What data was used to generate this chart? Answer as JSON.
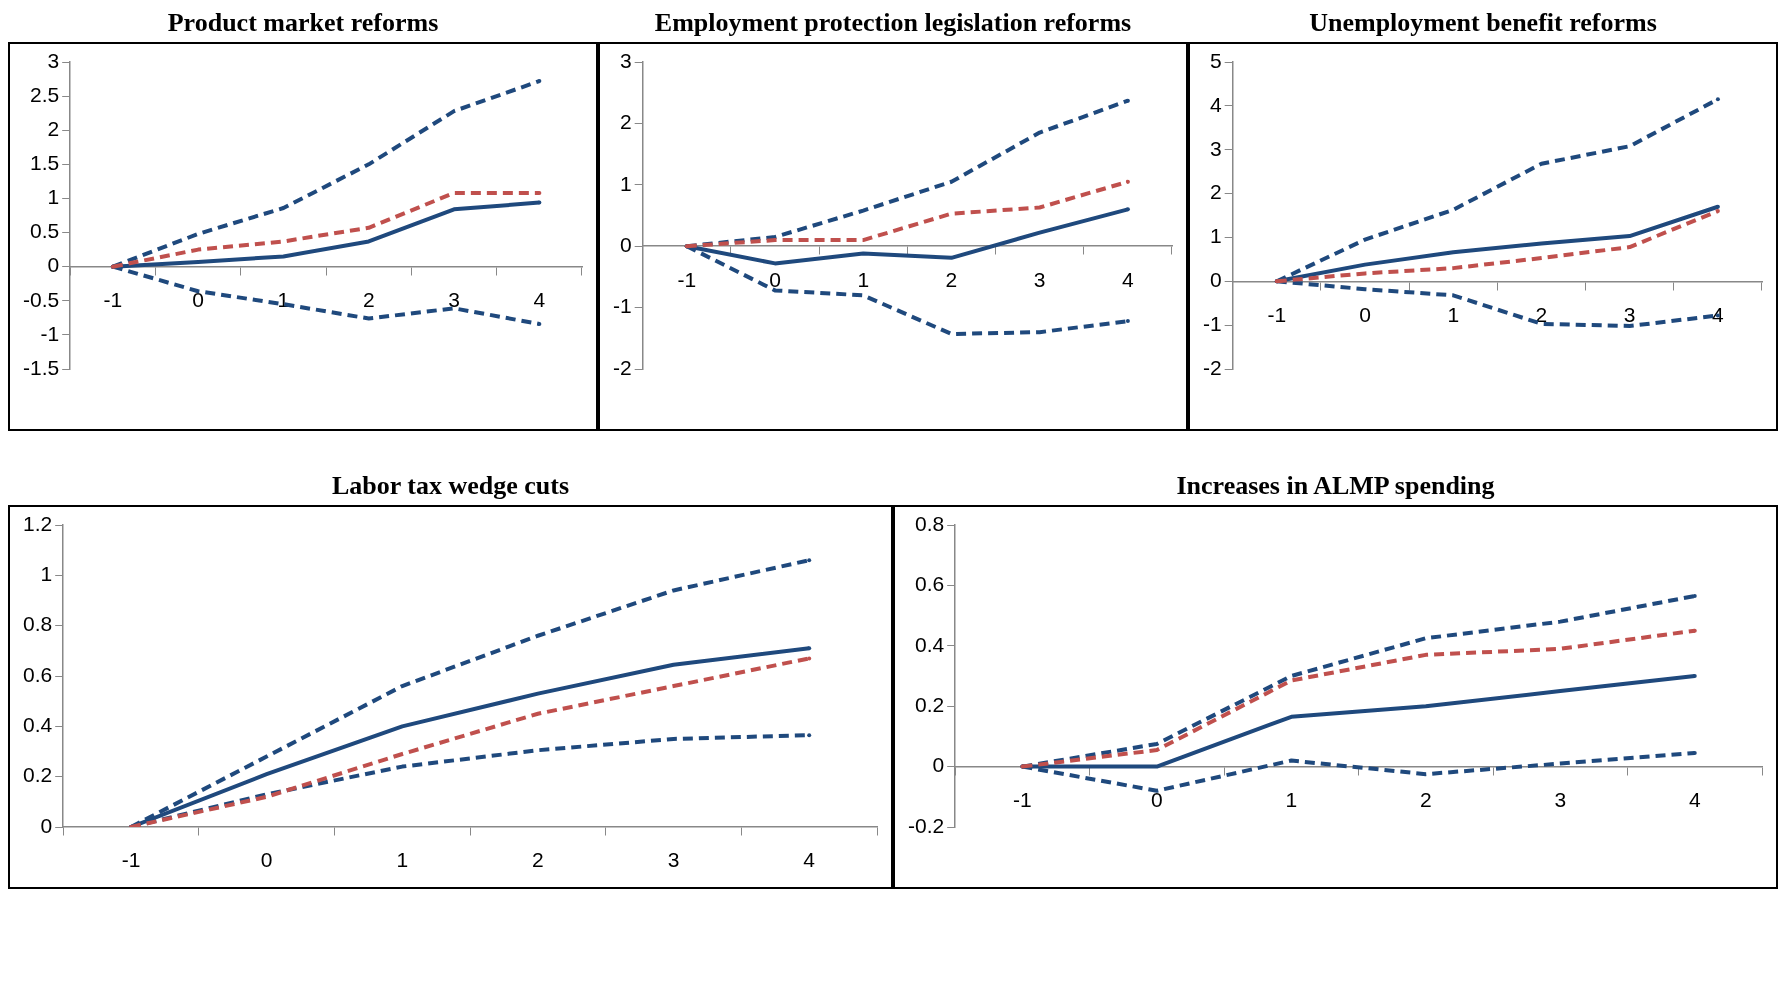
{
  "chart_data": [
    {
      "type": "line",
      "title": "Product market reforms",
      "categories": [
        "-1",
        "0",
        "1",
        "2",
        "3",
        "4"
      ],
      "ylim": [
        -1.5,
        3
      ],
      "yticks": [
        -1.5,
        -1,
        -0.5,
        0,
        0.5,
        1,
        1.5,
        2,
        2.5,
        3
      ],
      "grid": false,
      "legend": false,
      "marker": "none",
      "series": [
        {
          "color": "#1f497d",
          "line_style": "dashed",
          "values": [
            0,
            0.48,
            0.86,
            1.5,
            2.28,
            2.72
          ]
        },
        {
          "color": "#c0504d",
          "line_style": "dashed",
          "values": [
            0,
            0.25,
            0.37,
            0.57,
            1.08,
            1.08
          ]
        },
        {
          "color": "#1f497d",
          "line_style": "solid",
          "values": [
            0,
            0.07,
            0.15,
            0.37,
            0.84,
            0.94
          ]
        },
        {
          "color": "#1f497d",
          "line_style": "dashed",
          "values": [
            0,
            -0.36,
            -0.55,
            -0.76,
            -0.61,
            -0.84
          ]
        }
      ]
    },
    {
      "type": "line",
      "title": "Employment protection legislation reforms",
      "categories": [
        "-1",
        "0",
        "1",
        "2",
        "3",
        "4"
      ],
      "ylim": [
        -2,
        3
      ],
      "yticks": [
        -2,
        -1,
        0,
        1,
        2,
        3
      ],
      "grid": false,
      "legend": false,
      "marker": "none",
      "series": [
        {
          "color": "#1f497d",
          "line_style": "dashed",
          "values": [
            0,
            0.15,
            0.58,
            1.05,
            1.85,
            2.37
          ]
        },
        {
          "color": "#c0504d",
          "line_style": "dashed",
          "values": [
            0,
            0.1,
            0.1,
            0.53,
            0.63,
            1.05
          ]
        },
        {
          "color": "#1f497d",
          "line_style": "solid",
          "values": [
            0,
            -0.28,
            -0.12,
            -0.19,
            0.22,
            0.6
          ]
        },
        {
          "color": "#1f497d",
          "line_style": "dashed",
          "values": [
            0,
            -0.72,
            -0.8,
            -1.43,
            -1.4,
            -1.22
          ]
        }
      ]
    },
    {
      "type": "line",
      "title": "Unemployment benefit reforms",
      "categories": [
        "-1",
        "0",
        "1",
        "2",
        "3",
        "4"
      ],
      "ylim": [
        -2,
        5
      ],
      "yticks": [
        -2,
        -1,
        0,
        1,
        2,
        3,
        4,
        5
      ],
      "grid": false,
      "legend": false,
      "marker": "none",
      "series": [
        {
          "color": "#1f497d",
          "line_style": "dashed",
          "values": [
            0,
            0.95,
            1.63,
            2.68,
            3.08,
            4.15
          ]
        },
        {
          "color": "#c0504d",
          "line_style": "dashed",
          "values": [
            0,
            0.18,
            0.3,
            0.53,
            0.78,
            1.6
          ]
        },
        {
          "color": "#1f497d",
          "line_style": "solid",
          "values": [
            0,
            0.38,
            0.66,
            0.86,
            1.03,
            1.7
          ]
        },
        {
          "color": "#1f497d",
          "line_style": "dashed",
          "values": [
            0,
            -0.18,
            -0.32,
            -0.97,
            -1.02,
            -0.78
          ]
        }
      ]
    },
    {
      "type": "line",
      "title": "Labor tax wedge cuts",
      "categories": [
        "-1",
        "0",
        "1",
        "2",
        "3",
        "4"
      ],
      "ylim": [
        0,
        1.2
      ],
      "yticks": [
        0,
        0.2,
        0.4,
        0.6,
        0.8,
        1,
        1.2
      ],
      "grid": false,
      "legend": false,
      "marker": "none",
      "series": [
        {
          "color": "#1f497d",
          "line_style": "dashed",
          "values": [
            0,
            0.28,
            0.56,
            0.76,
            0.94,
            1.06
          ]
        },
        {
          "color": "#1f497d",
          "line_style": "solid",
          "values": [
            0,
            0.21,
            0.4,
            0.53,
            0.645,
            0.71
          ]
        },
        {
          "color": "#c0504d",
          "line_style": "dashed",
          "values": [
            0,
            0.12,
            0.29,
            0.45,
            0.56,
            0.67
          ]
        },
        {
          "color": "#1f497d",
          "line_style": "dashed",
          "values": [
            0,
            0.13,
            0.24,
            0.305,
            0.35,
            0.365
          ]
        }
      ]
    },
    {
      "type": "line",
      "title": "Increases in ALMP spending",
      "categories": [
        "-1",
        "0",
        "1",
        "2",
        "3",
        "4"
      ],
      "ylim": [
        -0.2,
        0.8
      ],
      "yticks": [
        -0.2,
        0,
        0.2,
        0.4,
        0.6,
        0.8
      ],
      "grid": false,
      "legend": false,
      "marker": "none",
      "series": [
        {
          "color": "#1f497d",
          "line_style": "dashed",
          "values": [
            0,
            0.075,
            0.3,
            0.425,
            0.48,
            0.565
          ]
        },
        {
          "color": "#c0504d",
          "line_style": "dashed",
          "values": [
            0,
            0.055,
            0.285,
            0.37,
            0.39,
            0.45
          ]
        },
        {
          "color": "#1f497d",
          "line_style": "solid",
          "values": [
            0,
            0,
            0.165,
            0.2,
            0.25,
            0.3
          ]
        },
        {
          "color": "#1f497d",
          "line_style": "dashed",
          "values": [
            0,
            -0.08,
            0.02,
            -0.025,
            0.01,
            0.045
          ]
        }
      ]
    }
  ]
}
